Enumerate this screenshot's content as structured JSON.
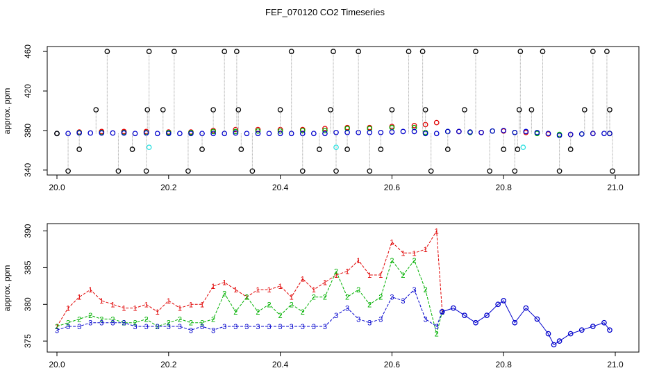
{
  "figure": {
    "title": "FEF_070120  CO2 Timeseries"
  },
  "colors": {
    "black": "#000000",
    "red": "#e00000",
    "green": "#00b000",
    "blue": "#0000cc",
    "cyan": "#30e0e0",
    "grey": "#a0a0a0"
  },
  "chart_data": [
    {
      "type": "scatter",
      "panel": "top",
      "ylabel": "approx. ppm",
      "xlim": [
        20.0,
        21.0
      ],
      "ylim": [
        335,
        465
      ],
      "xticks": [
        "20.0",
        "20.2",
        "20.4",
        "20.6",
        "20.8",
        "21.0"
      ],
      "yticks": [
        "340",
        "380",
        "420",
        "460"
      ],
      "series": [
        {
          "color": "red",
          "x": [
            20.0,
            20.04,
            20.08,
            20.12,
            20.16,
            20.2,
            20.24,
            20.28,
            20.32,
            20.36,
            20.4,
            20.44,
            20.48,
            20.52,
            20.56,
            20.6,
            20.64,
            20.66,
            20.68,
            20.72,
            20.76,
            20.8,
            20.84,
            20.88,
            20.92,
            20.96,
            20.99
          ],
          "y": [
            377,
            378.5,
            379,
            379,
            379,
            378.5,
            378.5,
            380,
            381,
            381,
            381,
            381,
            382,
            383,
            383,
            384,
            385,
            386,
            388,
            379,
            378,
            379.5,
            378,
            376.5,
            376,
            377,
            377
          ]
        },
        {
          "color": "green",
          "x": [
            20.0,
            20.04,
            20.08,
            20.12,
            20.16,
            20.2,
            20.24,
            20.28,
            20.32,
            20.36,
            20.4,
            20.44,
            20.48,
            20.52,
            20.56,
            20.6,
            20.64,
            20.66,
            20.7,
            20.74,
            20.78,
            20.82,
            20.86,
            20.9,
            20.94,
            20.99
          ],
          "y": [
            377,
            378,
            378,
            378,
            378,
            378,
            378,
            379,
            379,
            379.5,
            379.5,
            380,
            380,
            382,
            382,
            383,
            383,
            378,
            379,
            378,
            379.5,
            378,
            377,
            376,
            376.5,
            377
          ]
        },
        {
          "color": "blue",
          "x": [
            20.0,
            20.02,
            20.04,
            20.06,
            20.08,
            20.1,
            20.12,
            20.14,
            20.16,
            20.18,
            20.2,
            20.22,
            20.24,
            20.26,
            20.28,
            20.3,
            20.32,
            20.34,
            20.36,
            20.38,
            20.4,
            20.42,
            20.44,
            20.46,
            20.48,
            20.5,
            20.52,
            20.54,
            20.56,
            20.58,
            20.6,
            20.62,
            20.64,
            20.66,
            20.68,
            20.7,
            20.72,
            20.74,
            20.76,
            20.78,
            20.8,
            20.82,
            20.84,
            20.86,
            20.88,
            20.9,
            20.92,
            20.94,
            20.96,
            20.98,
            20.99
          ],
          "y": [
            377,
            377,
            377.5,
            377.5,
            377.5,
            377.5,
            377.5,
            377,
            377.5,
            377,
            377,
            377,
            377,
            377,
            377,
            377,
            377.5,
            377,
            377,
            377,
            377,
            377,
            377,
            377,
            377,
            378,
            378,
            378,
            378,
            378,
            378.5,
            379,
            379,
            377,
            377,
            379,
            379,
            378.5,
            378,
            379.5,
            380,
            378,
            379,
            378,
            377,
            375,
            376,
            376.5,
            377,
            377,
            377
          ]
        },
        {
          "color": "black",
          "x": [
            20.0,
            20.02,
            20.04,
            20.07,
            20.09,
            20.11,
            20.135,
            20.16,
            20.162,
            20.165,
            20.19,
            20.21,
            20.235,
            20.26,
            20.28,
            20.3,
            20.322,
            20.325,
            20.33,
            20.35,
            20.4,
            20.42,
            20.44,
            20.47,
            20.49,
            20.495,
            20.5,
            20.52,
            20.54,
            20.56,
            20.58,
            20.6,
            20.63,
            20.655,
            20.66,
            20.67,
            20.7,
            20.73,
            20.75,
            20.775,
            20.8,
            20.82,
            20.825,
            20.828,
            20.83,
            20.85,
            20.87,
            20.9,
            20.92,
            20.945,
            20.96,
            20.985,
            20.99,
            20.995
          ],
          "y": [
            377,
            339,
            361,
            401,
            460,
            339,
            361,
            339,
            401,
            460,
            401,
            460,
            339,
            361,
            401,
            460,
            460,
            401,
            361,
            339,
            401,
            460,
            339,
            361,
            401,
            460,
            339,
            361,
            460,
            339,
            361,
            401,
            460,
            460,
            401,
            339,
            361,
            401,
            460,
            339,
            361,
            339,
            361,
            401,
            460,
            401,
            460,
            339,
            361,
            401,
            460,
            460,
            401,
            339
          ]
        },
        {
          "color": "cyan",
          "x": [
            20.165,
            20.5,
            20.835
          ],
          "y": [
            363,
            363,
            363
          ]
        }
      ]
    },
    {
      "type": "line",
      "panel": "bottom",
      "ylabel": "approx. ppm",
      "xlim": [
        20.0,
        21.0
      ],
      "ylim": [
        373.5,
        391
      ],
      "xticks": [
        "20.0",
        "20.2",
        "20.4",
        "20.6",
        "20.8",
        "21.0"
      ],
      "yticks": [
        "375",
        "380",
        "385",
        "390"
      ],
      "series": [
        {
          "color": "red",
          "marker": "1",
          "x": [
            20.0,
            20.02,
            20.04,
            20.06,
            20.08,
            20.1,
            20.12,
            20.14,
            20.16,
            20.18,
            20.2,
            20.22,
            20.24,
            20.26,
            20.28,
            20.3,
            20.32,
            20.34,
            20.36,
            20.38,
            20.4,
            20.42,
            20.44,
            20.46,
            20.48,
            20.5,
            20.52,
            20.54,
            20.56,
            20.58,
            20.6,
            20.62,
            20.64,
            20.66,
            20.68,
            20.69
          ],
          "y": [
            377,
            379.5,
            381,
            382,
            380.5,
            380,
            379.5,
            379.5,
            380,
            379,
            380.5,
            379.5,
            380,
            380,
            382.5,
            383,
            382,
            381,
            382,
            382,
            382.5,
            381,
            383.5,
            382,
            383,
            384,
            384.5,
            386,
            384,
            384,
            388.5,
            387,
            387,
            387.5,
            390,
            379
          ]
        },
        {
          "color": "green",
          "marker": "2",
          "x": [
            20.0,
            20.02,
            20.04,
            20.06,
            20.08,
            20.1,
            20.12,
            20.14,
            20.16,
            20.18,
            20.2,
            20.22,
            20.24,
            20.26,
            20.28,
            20.3,
            20.32,
            20.34,
            20.36,
            20.38,
            20.4,
            20.42,
            20.44,
            20.46,
            20.48,
            20.5,
            20.52,
            20.54,
            20.56,
            20.58,
            20.6,
            20.62,
            20.64,
            20.66,
            20.68,
            20.69
          ],
          "y": [
            377,
            377.5,
            378,
            378.5,
            378,
            378,
            377.5,
            377.5,
            378,
            377,
            377.5,
            378,
            377.5,
            377.5,
            378,
            381.5,
            379,
            381,
            379,
            380,
            378.5,
            380,
            379,
            381,
            381,
            384.5,
            381,
            382,
            380,
            381,
            386,
            384,
            386,
            382,
            376,
            379
          ]
        },
        {
          "color": "blue",
          "marker": "3",
          "x": [
            20.0,
            20.02,
            20.04,
            20.06,
            20.08,
            20.1,
            20.12,
            20.14,
            20.16,
            20.18,
            20.2,
            20.22,
            20.24,
            20.26,
            20.28,
            20.3,
            20.32,
            20.34,
            20.36,
            20.38,
            20.4,
            20.42,
            20.44,
            20.46,
            20.48,
            20.5,
            20.52,
            20.54,
            20.56,
            20.58,
            20.6,
            20.62,
            20.64,
            20.66,
            20.68,
            20.69
          ],
          "y": [
            376.5,
            377,
            377,
            377.5,
            377.5,
            377.5,
            377.5,
            377,
            377,
            377,
            377,
            377,
            376.5,
            377,
            376.5,
            377,
            377,
            377,
            377,
            377,
            377,
            377,
            377,
            377,
            377,
            378.5,
            379.5,
            378,
            377.5,
            378,
            381,
            380.5,
            382,
            378,
            377,
            379
          ]
        },
        {
          "color": "blue",
          "marker": "o",
          "x": [
            20.69,
            20.71,
            20.73,
            20.75,
            20.77,
            20.79,
            20.8,
            20.82,
            20.84,
            20.86,
            20.88,
            20.89,
            20.9,
            20.92,
            20.94,
            20.96,
            20.98,
            20.99
          ],
          "y": [
            379,
            379.5,
            378.5,
            377.5,
            378.5,
            380,
            380.5,
            377.5,
            379.5,
            378,
            376,
            374.5,
            375,
            376,
            376.5,
            377,
            377.5,
            376.5
          ]
        }
      ]
    }
  ]
}
